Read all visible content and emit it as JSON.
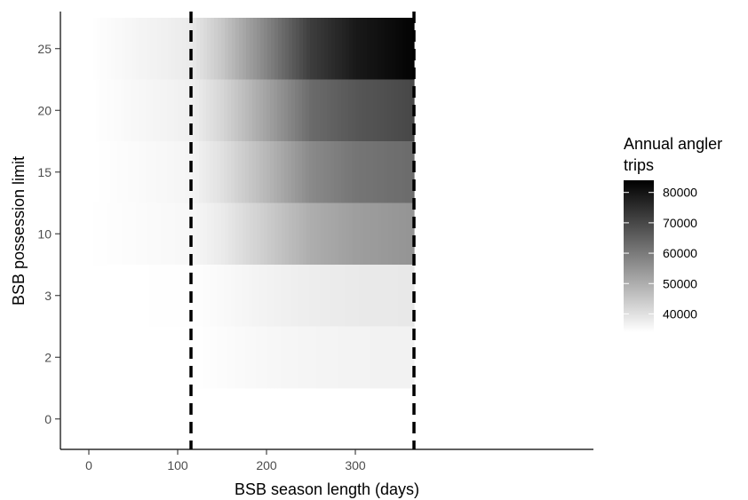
{
  "chart_data": {
    "type": "heatmap",
    "title": "",
    "xlabel": "BSB season length (days)",
    "ylabel": "BSB possession limit",
    "x_ticks": [
      0,
      100,
      200,
      300
    ],
    "xlim": [
      -30,
      397
    ],
    "y_categories": [
      "0",
      "2",
      "3",
      "10",
      "15",
      "20",
      "25"
    ],
    "vlines": [
      115,
      366
    ],
    "vline_style": "dashed",
    "legend": {
      "title": "Annual angler trips",
      "title_lines": [
        "Annual angler",
        "trips"
      ],
      "ticks": [
        40000,
        50000,
        60000,
        70000,
        80000
      ],
      "range": [
        34000,
        84000
      ],
      "placement": "right"
    },
    "grid": false,
    "series": [
      {
        "name": "25",
        "start_day": 5,
        "end_day": 366,
        "x": [
          5,
          115,
          150,
          200,
          250,
          300,
          366
        ],
        "values": [
          34200,
          38000,
          45000,
          58000,
          72000,
          79000,
          83500
        ]
      },
      {
        "name": "20",
        "start_day": 8,
        "end_day": 366,
        "x": [
          8,
          115,
          150,
          200,
          250,
          300,
          366
        ],
        "values": [
          34200,
          37000,
          42000,
          52000,
          63000,
          67000,
          70000
        ]
      },
      {
        "name": "15",
        "start_day": 12,
        "end_day": 366,
        "x": [
          12,
          115,
          150,
          200,
          250,
          300,
          366
        ],
        "values": [
          34100,
          36000,
          40000,
          48000,
          57000,
          61000,
          63000
        ]
      },
      {
        "name": "10",
        "start_day": 5,
        "end_day": 366,
        "x": [
          5,
          115,
          150,
          200,
          250,
          300,
          366
        ],
        "values": [
          34100,
          35500,
          38000,
          44000,
          50000,
          53000,
          55000
        ]
      },
      {
        "name": "3",
        "start_day": 20,
        "end_day": 366,
        "x": [
          20,
          115,
          150,
          200,
          250,
          300,
          366
        ],
        "values": [
          34000,
          34200,
          35000,
          36500,
          37500,
          38200,
          38500
        ]
      },
      {
        "name": "2",
        "start_day": 60,
        "end_day": 366,
        "x": [
          60,
          115,
          150,
          200,
          250,
          300,
          366
        ],
        "values": [
          34000,
          34100,
          34600,
          35500,
          36000,
          36400,
          36600
        ]
      },
      {
        "name": "0",
        "start_day": 0,
        "end_day": 0,
        "x": [],
        "values": []
      }
    ]
  }
}
